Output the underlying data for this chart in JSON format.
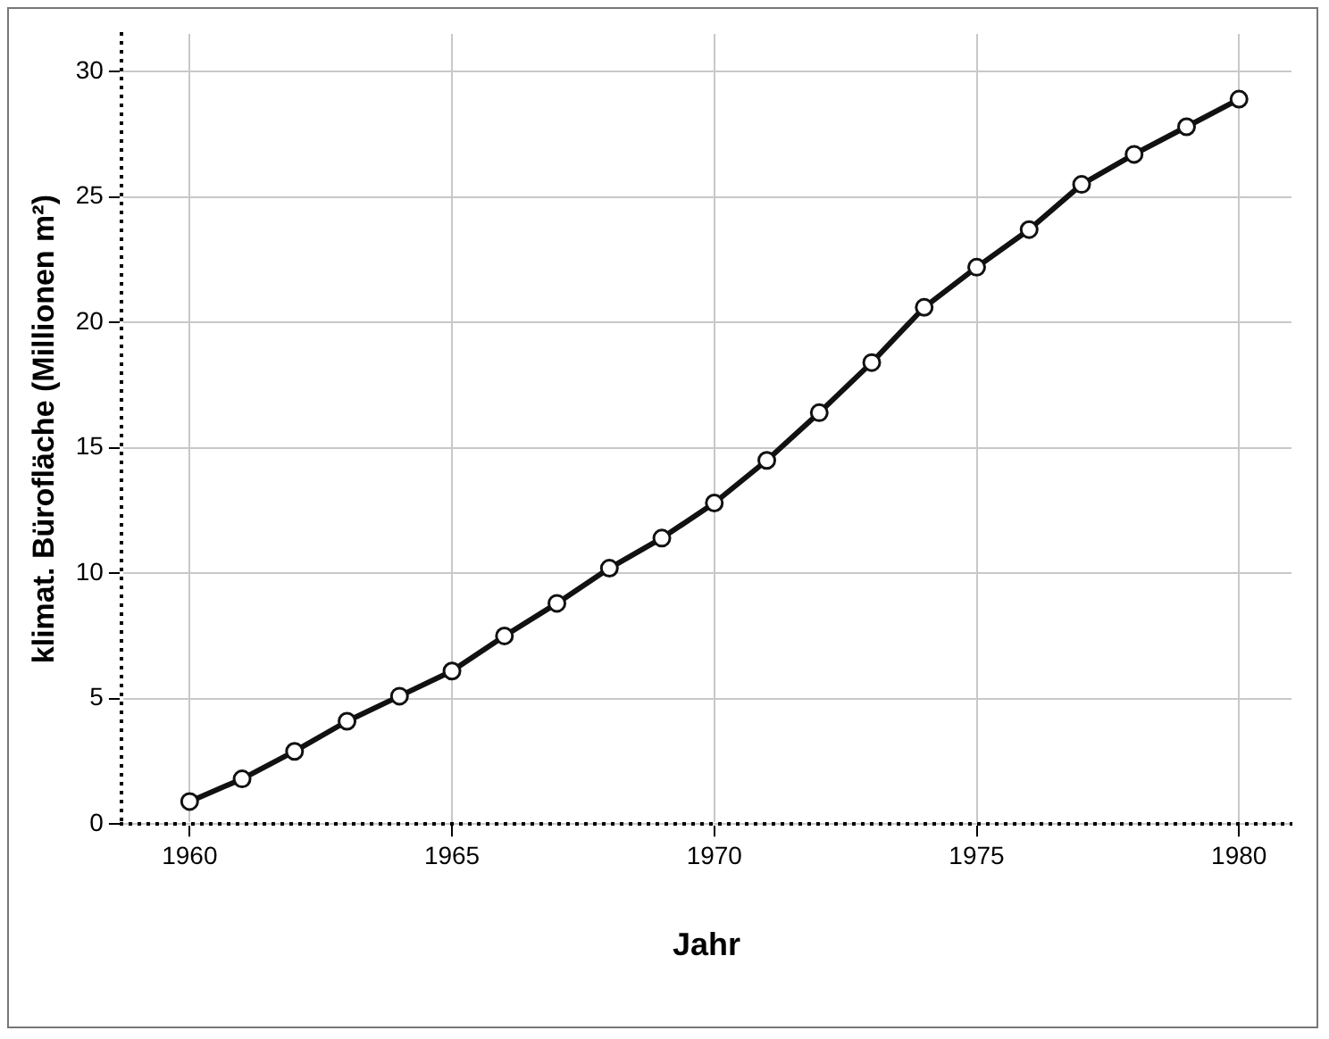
{
  "chart_data": {
    "type": "line",
    "xlabel": "Jahr",
    "ylabel": "klimat. Bürofläche (Millionen m²)",
    "x": [
      1960,
      1961,
      1962,
      1963,
      1964,
      1965,
      1966,
      1967,
      1968,
      1969,
      1970,
      1971,
      1972,
      1973,
      1974,
      1975,
      1976,
      1977,
      1978,
      1979,
      1980
    ],
    "series": [
      {
        "color": "#111111",
        "values": [
          0.9,
          1.8,
          2.9,
          4.1,
          5.1,
          6.1,
          7.5,
          8.8,
          10.2,
          11.4,
          12.8,
          14.5,
          16.4,
          18.4,
          20.6,
          22.2,
          23.7,
          25.5,
          26.7,
          27.8,
          28.9
        ]
      }
    ],
    "xlim": [
      1958.7,
      1981
    ],
    "xticks": [
      1960,
      1965,
      1970,
      1975,
      1980
    ],
    "ylim": [
      0,
      31.5
    ],
    "yticks": [
      0,
      5,
      10,
      15,
      20,
      25,
      30
    ],
    "grid": true,
    "legend": false,
    "marker": "circle",
    "line_style": "solid"
  }
}
